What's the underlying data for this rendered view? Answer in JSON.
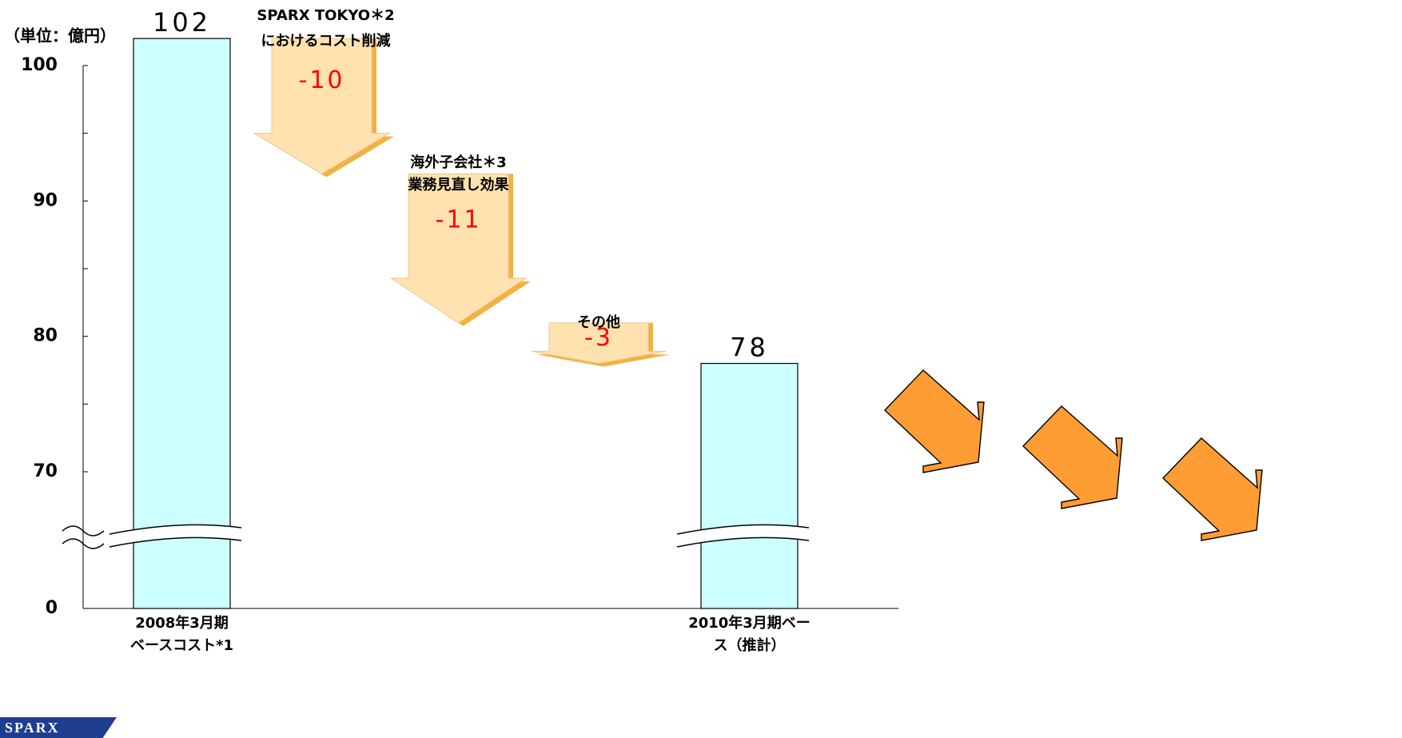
{
  "chart_data": {
    "type": "bar",
    "subtype": "waterfall",
    "unit_label": "（単位：億円）",
    "y_ticks": [
      "0",
      "70",
      "80",
      "90",
      "100"
    ],
    "axis_break": true,
    "grid": false,
    "bars": [
      {
        "label": [
          "2008年3月期",
          "ベースコスト*1"
        ],
        "value": 102,
        "value_label": "102",
        "color": "#ccffff"
      },
      {
        "label": [
          "2010年3月期ベー",
          "ス（推計）"
        ],
        "value": 78,
        "value_label": "78",
        "color": "#ccffff"
      }
    ],
    "steps": [
      {
        "label": [
          "SPARX TOKYO＊2",
          "におけるコスト削減"
        ],
        "start": 102,
        "value": -10,
        "value_label": "-10"
      },
      {
        "label": [
          "海外子会社＊3",
          "業務見直し効果"
        ],
        "start": 92,
        "value": -11,
        "value_label": "-11"
      },
      {
        "label": [
          "その他"
        ],
        "start": 81,
        "value": -3,
        "value_label": "-3"
      }
    ],
    "colors": {
      "bar_fill": "#ccffff",
      "step_fill": "#ffe2b0",
      "step_edge": "#f5b042",
      "step_value_text": "#ff0000",
      "decor_arrow": "#ff9c33"
    }
  },
  "decor_arrows": {
    "count": 3,
    "icon": "down-right-arrow-icon"
  },
  "logo": {
    "text": "SPARX"
  }
}
